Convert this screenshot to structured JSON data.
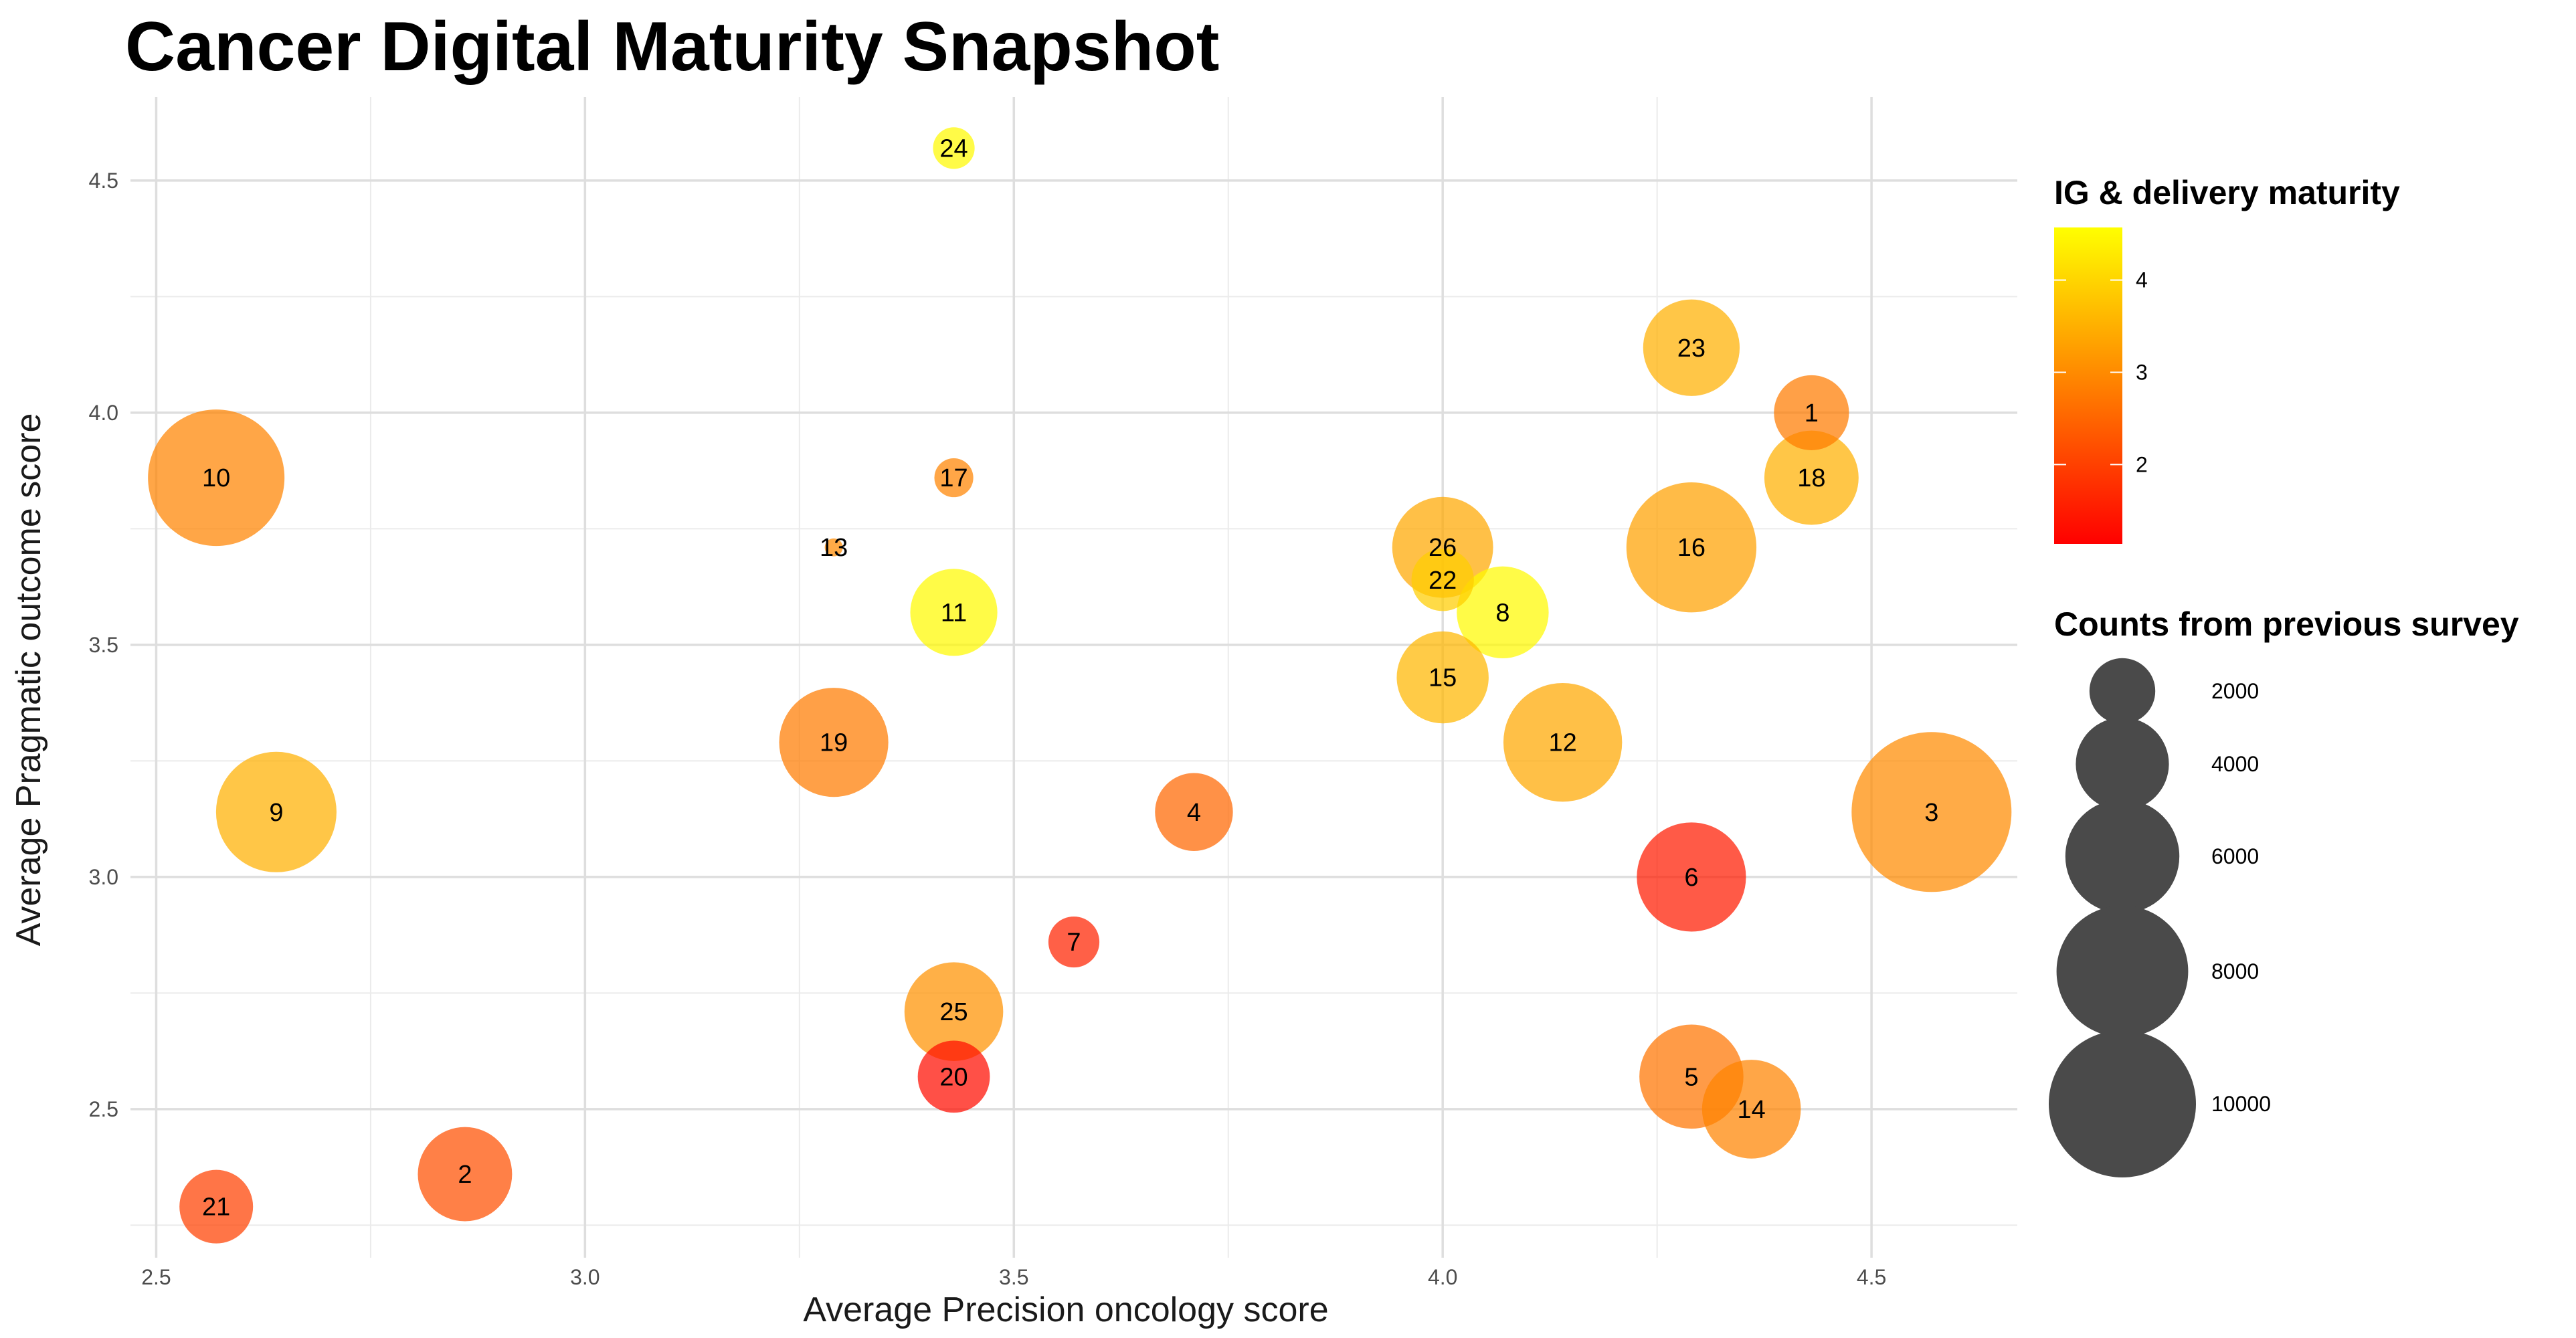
{
  "chart_data": {
    "type": "scatter",
    "title": "Cancer Digital Maturity Snapshot",
    "xlabel": "Average Precision oncology score",
    "ylabel": "Average Pragmatic outcome score",
    "xlim": [
      2.47,
      4.67
    ],
    "ylim": [
      2.18,
      4.68
    ],
    "x_ticks": [
      2.5,
      3.0,
      3.5,
      4.0,
      4.5
    ],
    "x_tick_labels": [
      "2.5",
      "3.0",
      "3.5",
      "4.0",
      "4.5"
    ],
    "y_ticks": [
      2.5,
      3.0,
      3.5,
      4.0,
      4.5
    ],
    "y_tick_labels": [
      "2.5",
      "3.0",
      "3.5",
      "4.0",
      "4.5"
    ],
    "grid": true,
    "color_legend": {
      "title": "IG & delivery maturity",
      "min": 1.14,
      "max": 4.57,
      "ticks": [
        2,
        3,
        4
      ],
      "tick_labels": [
        "2",
        "3",
        "4"
      ],
      "colors": [
        "#ff0000",
        "#ff8000",
        "#ffff00"
      ]
    },
    "size_legend": {
      "title": "Counts from previous survey",
      "values": [
        2000,
        4000,
        6000,
        8000,
        10000
      ],
      "labels": [
        "2000",
        "4000",
        "6000",
        "8000",
        "10000"
      ],
      "color": "#4a4a4a"
    },
    "points": [
      {
        "label": "1",
        "x": 4.43,
        "y": 4.0,
        "maturity": 2.8,
        "count": 2600
      },
      {
        "label": "2",
        "x": 2.86,
        "y": 2.36,
        "maturity": 2.2,
        "count": 4100
      },
      {
        "label": "3",
        "x": 4.57,
        "y": 3.14,
        "maturity": 3.0,
        "count": 11800
      },
      {
        "label": "4",
        "x": 3.71,
        "y": 3.14,
        "maturity": 2.5,
        "count": 2800
      },
      {
        "label": "5",
        "x": 4.29,
        "y": 2.57,
        "maturity": 2.7,
        "count": 5000
      },
      {
        "label": "6",
        "x": 4.29,
        "y": 3.0,
        "maturity": 1.5,
        "count": 5500
      },
      {
        "label": "7",
        "x": 3.57,
        "y": 2.86,
        "maturity": 1.6,
        "count": 1200
      },
      {
        "label": "8",
        "x": 4.07,
        "y": 3.57,
        "maturity": 4.5,
        "count": 3900
      },
      {
        "label": "9",
        "x": 2.64,
        "y": 3.14,
        "maturity": 3.5,
        "count": 6700
      },
      {
        "label": "10",
        "x": 2.57,
        "y": 3.86,
        "maturity": 2.9,
        "count": 8600
      },
      {
        "label": "11",
        "x": 3.43,
        "y": 3.57,
        "maturity": 4.5,
        "count": 3500
      },
      {
        "label": "12",
        "x": 4.14,
        "y": 3.29,
        "maturity": 3.4,
        "count": 6500
      },
      {
        "label": "13",
        "x": 3.29,
        "y": 3.71,
        "maturity": 3.0,
        "count": 150
      },
      {
        "label": "14",
        "x": 4.36,
        "y": 2.5,
        "maturity": 2.9,
        "count": 4500
      },
      {
        "label": "15",
        "x": 4.0,
        "y": 3.43,
        "maturity": 3.6,
        "count": 3900
      },
      {
        "label": "16",
        "x": 4.29,
        "y": 3.71,
        "maturity": 3.3,
        "count": 7800
      },
      {
        "label": "17",
        "x": 3.43,
        "y": 3.86,
        "maturity": 2.9,
        "count": 700
      },
      {
        "label": "18",
        "x": 4.43,
        "y": 3.86,
        "maturity": 3.5,
        "count": 4100
      },
      {
        "label": "19",
        "x": 3.29,
        "y": 3.29,
        "maturity": 2.8,
        "count": 5500
      },
      {
        "label": "20",
        "x": 3.43,
        "y": 2.57,
        "maturity": 1.3,
        "count": 2400
      },
      {
        "label": "21",
        "x": 2.57,
        "y": 2.29,
        "maturity": 2.0,
        "count": 2500
      },
      {
        "label": "22",
        "x": 4.0,
        "y": 3.64,
        "maturity": 3.9,
        "count": 1800
      },
      {
        "label": "23",
        "x": 4.29,
        "y": 4.14,
        "maturity": 3.5,
        "count": 4300
      },
      {
        "label": "24",
        "x": 3.43,
        "y": 4.57,
        "maturity": 4.5,
        "count": 800
      },
      {
        "label": "25",
        "x": 3.43,
        "y": 2.71,
        "maturity": 3.1,
        "count": 4500
      },
      {
        "label": "26",
        "x": 4.0,
        "y": 3.71,
        "maturity": 3.4,
        "count": 4700
      }
    ]
  }
}
